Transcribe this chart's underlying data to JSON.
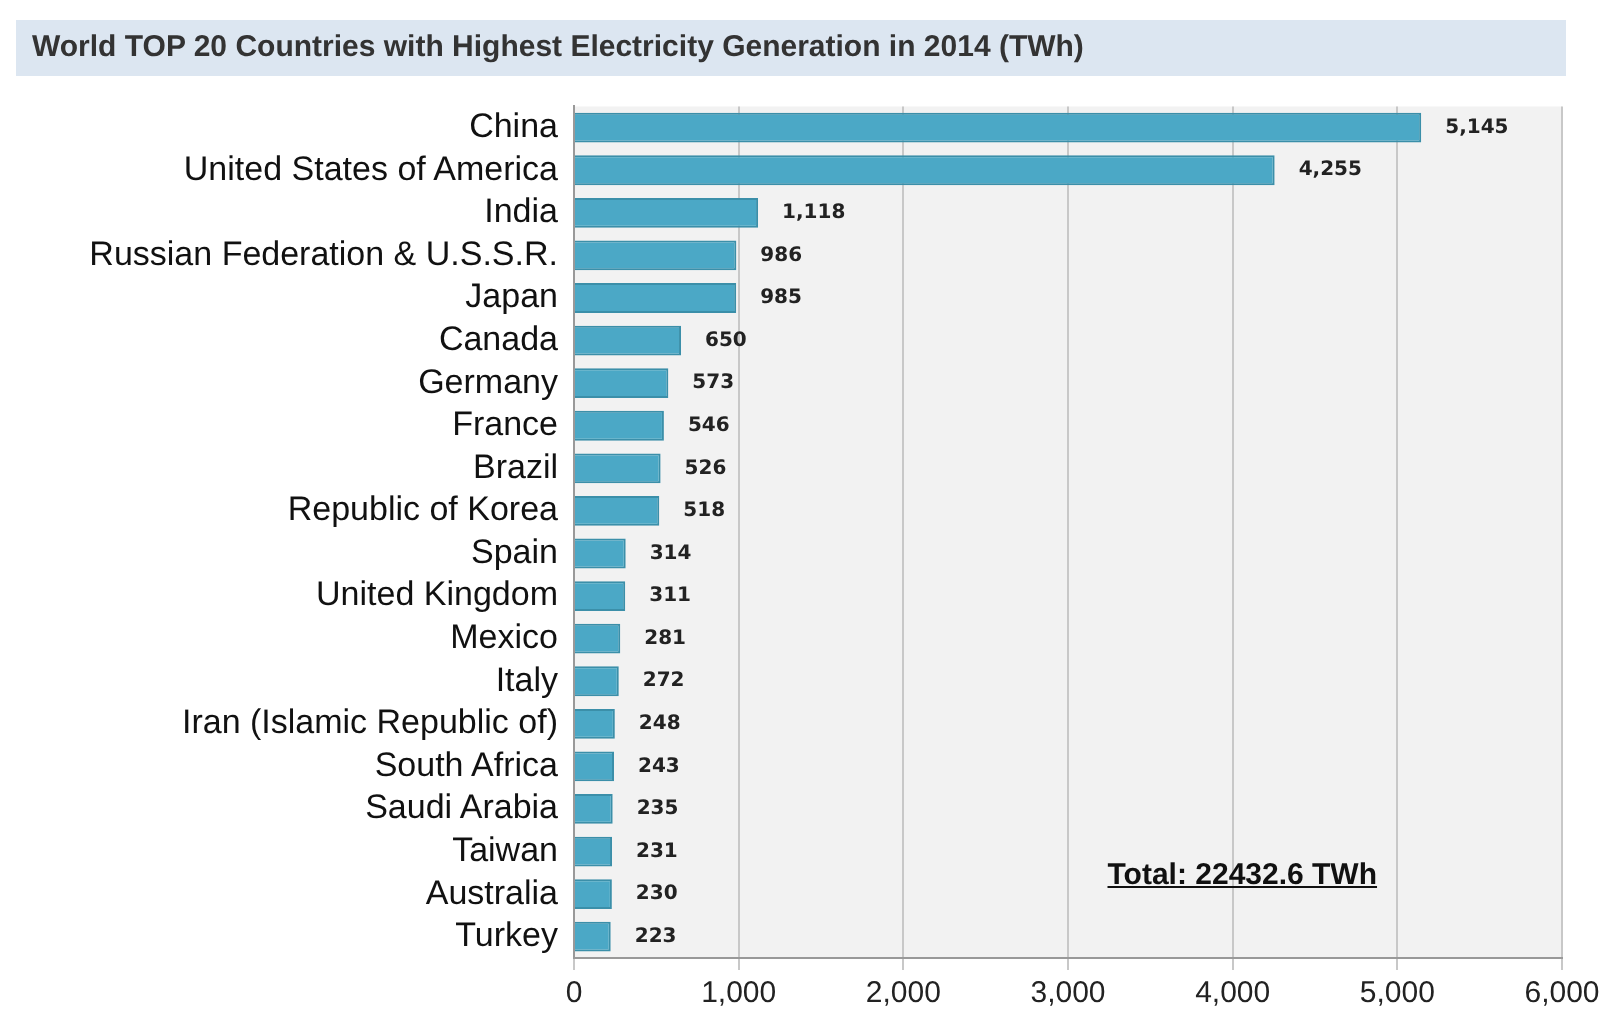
{
  "chart_data": {
    "type": "bar",
    "orientation": "horizontal",
    "title": "World TOP 20 Countries with Highest Electricity Generation in 2014 (TWh)",
    "categories": [
      "China",
      "United States of America",
      "India",
      "Russian Federation & U.S.S.R.",
      "Japan",
      "Canada",
      "Germany",
      "France",
      "Brazil",
      "Republic of Korea",
      "Spain",
      "United Kingdom",
      "Mexico",
      "Italy",
      "Iran (Islamic Republic of)",
      "South Africa",
      "Saudi Arabia",
      "Taiwan",
      "Australia",
      "Turkey"
    ],
    "values": [
      5145,
      4255,
      1118,
      986,
      985,
      650,
      573,
      546,
      526,
      518,
      314,
      311,
      281,
      272,
      248,
      243,
      235,
      231,
      230,
      223
    ],
    "value_labels": [
      "5,145",
      "4,255",
      "1,118",
      "986",
      "985",
      "650",
      "573",
      "546",
      "526",
      "518",
      "314",
      "311",
      "281",
      "272",
      "248",
      "243",
      "235",
      "231",
      "230",
      "223"
    ],
    "color": "#4ba8c6",
    "xlim": [
      0,
      6000
    ],
    "xticks": [
      {
        "value": 0,
        "label": "0"
      },
      {
        "value": 1000,
        "label": "1,000"
      },
      {
        "value": 2000,
        "label": "2,000"
      },
      {
        "value": 3000,
        "label": "3,000"
      },
      {
        "value": 4000,
        "label": "4,000"
      },
      {
        "value": 5000,
        "label": "5,000"
      },
      {
        "value": 6000,
        "label": "6,000"
      }
    ],
    "grid": "x",
    "legend": false,
    "annotations": [
      "Total: 22432.6 TWh"
    ]
  }
}
